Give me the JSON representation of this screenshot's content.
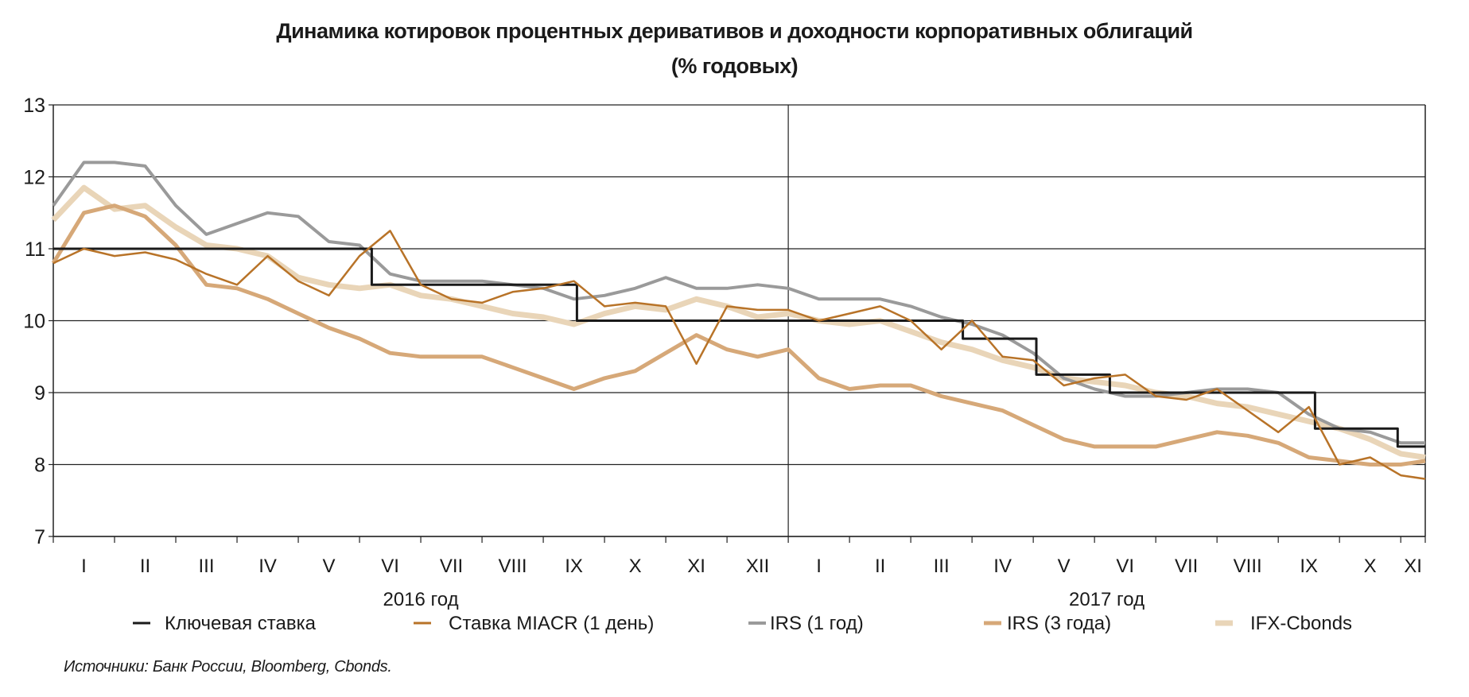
{
  "chart_data": {
    "type": "line",
    "title": "Динамика котировок процентных деривативов и доходности корпоративных облигаций",
    "subtitle": "(% годовых)",
    "ylim": [
      7,
      13
    ],
    "yticks": [
      7,
      8,
      9,
      10,
      11,
      12,
      13
    ],
    "xlim_months": [
      0,
      22.4
    ],
    "grid": true,
    "legend_position": "bottom",
    "years": [
      {
        "label": "2016 год",
        "start_month": 0,
        "months": [
          "I",
          "II",
          "III",
          "IV",
          "V",
          "VI",
          "VII",
          "VIII",
          "IX",
          "X",
          "XI",
          "XII"
        ]
      },
      {
        "label": "2017 год",
        "start_month": 12,
        "months": [
          "I",
          "II",
          "III",
          "IV",
          "V",
          "VI",
          "VII",
          "VIII",
          "IX",
          "X",
          "XI"
        ]
      }
    ],
    "x_months": [
      0,
      0.5,
      1,
      1.5,
      2,
      2.5,
      3,
      3.5,
      4,
      4.5,
      5,
      5.5,
      6,
      6.5,
      7,
      7.5,
      8,
      8.5,
      9,
      9.5,
      10,
      10.5,
      11,
      11.5,
      12,
      12.5,
      13,
      13.5,
      14,
      14.5,
      15,
      15.5,
      16,
      16.5,
      17,
      17.5,
      18,
      18.5,
      19,
      19.5,
      20,
      20.5,
      21,
      21.5,
      22,
      22.4
    ],
    "series": [
      {
        "name": "Ключевая ставка",
        "color": "#1a1a1a",
        "width": 3,
        "step": true,
        "points": [
          [
            0,
            11
          ],
          [
            5.2,
            10.5
          ],
          [
            8.55,
            10
          ],
          [
            14.85,
            9.75
          ],
          [
            16.05,
            9.25
          ],
          [
            17.25,
            9
          ],
          [
            20.6,
            8.5
          ],
          [
            21.95,
            8.25
          ],
          [
            22.4,
            8.25
          ]
        ]
      },
      {
        "name": "Ставка MIACR (1 день)",
        "color": "#b87328",
        "width": 2.5,
        "values": [
          10.8,
          11.0,
          10.9,
          10.95,
          10.85,
          10.65,
          10.5,
          10.9,
          10.55,
          10.35,
          10.9,
          11.25,
          10.5,
          10.3,
          10.25,
          10.4,
          10.45,
          10.55,
          10.2,
          10.25,
          10.2,
          9.4,
          10.2,
          10.15,
          10.15,
          10.0,
          10.1,
          10.2,
          10.0,
          9.6,
          10.0,
          9.5,
          9.45,
          9.1,
          9.2,
          9.25,
          8.95,
          8.9,
          9.05,
          8.75,
          8.45,
          8.8,
          8.0,
          8.1,
          7.85,
          7.8
        ]
      },
      {
        "name": "IRS (1 год)",
        "color": "#9a9a9a",
        "width": 4,
        "values": [
          11.6,
          12.2,
          12.2,
          12.15,
          11.6,
          11.2,
          11.35,
          11.5,
          11.45,
          11.1,
          11.05,
          10.65,
          10.55,
          10.55,
          10.55,
          10.5,
          10.45,
          10.3,
          10.35,
          10.45,
          10.6,
          10.45,
          10.45,
          10.5,
          10.45,
          10.3,
          10.3,
          10.3,
          10.2,
          10.05,
          9.95,
          9.8,
          9.55,
          9.2,
          9.05,
          8.95,
          8.95,
          9.0,
          9.05,
          9.05,
          9.0,
          8.7,
          8.5,
          8.45,
          8.3,
          8.3
        ]
      },
      {
        "name": "IRS (3 года)",
        "color": "#d6a878",
        "width": 5,
        "values": [
          10.8,
          11.5,
          11.6,
          11.45,
          11.05,
          10.5,
          10.45,
          10.3,
          10.1,
          9.9,
          9.75,
          9.55,
          9.5,
          9.5,
          9.5,
          9.35,
          9.2,
          9.05,
          9.2,
          9.3,
          9.55,
          9.8,
          9.6,
          9.5,
          9.6,
          9.2,
          9.05,
          9.1,
          9.1,
          8.95,
          8.85,
          8.75,
          8.55,
          8.35,
          8.25,
          8.25,
          8.25,
          8.35,
          8.45,
          8.4,
          8.3,
          8.1,
          8.05,
          8.0,
          8.0,
          8.05
        ]
      },
      {
        "name": "IFX-Cbonds",
        "color": "#e9d5b8",
        "width": 7,
        "values": [
          11.4,
          11.85,
          11.55,
          11.6,
          11.3,
          11.05,
          11.0,
          10.9,
          10.6,
          10.5,
          10.45,
          10.5,
          10.35,
          10.3,
          10.2,
          10.1,
          10.05,
          9.95,
          10.1,
          10.2,
          10.15,
          10.3,
          10.2,
          10.05,
          10.1,
          10.0,
          9.95,
          10.0,
          9.85,
          9.7,
          9.6,
          9.45,
          9.35,
          9.2,
          9.15,
          9.1,
          9.0,
          8.95,
          8.85,
          8.8,
          8.7,
          8.6,
          8.5,
          8.35,
          8.15,
          8.1
        ]
      }
    ],
    "source": "Источники: Банк России, Bloomberg, Cbonds."
  }
}
